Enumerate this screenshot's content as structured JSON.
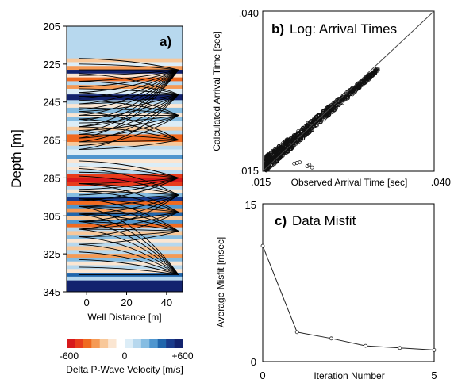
{
  "chart_data": [
    {
      "panel": "a)",
      "type": "heatmap",
      "xlabel": "Well Distance [m]",
      "ylabel": "Depth [m]",
      "x_ticks": [
        "0",
        "20",
        "40"
      ],
      "y_ticks": [
        "205",
        "225",
        "245",
        "265",
        "285",
        "305",
        "325",
        "345"
      ],
      "xlim": [
        -10,
        48
      ],
      "ylim": [
        345,
        205
      ],
      "colorbar": {
        "label": "Delta P-Wave Velocity [m/s]",
        "tick_labels": [
          "-600",
          "0",
          "+600"
        ],
        "range": [
          -600,
          600
        ],
        "colors": [
          "#d7191c",
          "#e83c1c",
          "#f06a20",
          "#f59a55",
          "#f8c89a",
          "#fbe6d2",
          "#ffffff",
          "#dcedf7",
          "#b7d8ee",
          "#86bde2",
          "#4f96cf",
          "#2166ac",
          "#1a3c8c",
          "#13236e"
        ]
      },
      "layers": [
        {
          "top": 205,
          "bottom": 222,
          "value": 100
        },
        {
          "top": 222,
          "bottom": 224,
          "value": -200
        },
        {
          "top": 224,
          "bottom": 226,
          "value": 50
        },
        {
          "top": 226,
          "bottom": 228,
          "value": -300
        },
        {
          "top": 228,
          "bottom": 230,
          "value": 600
        },
        {
          "top": 230,
          "bottom": 232,
          "value": -100
        },
        {
          "top": 232,
          "bottom": 234,
          "value": -420
        },
        {
          "top": 234,
          "bottom": 236,
          "value": 100
        },
        {
          "top": 236,
          "bottom": 238,
          "value": -300
        },
        {
          "top": 238,
          "bottom": 241,
          "value": 50
        },
        {
          "top": 241,
          "bottom": 244,
          "value": 580
        },
        {
          "top": 244,
          "bottom": 246,
          "value": 150
        },
        {
          "top": 246,
          "bottom": 248,
          "value": -150
        },
        {
          "top": 248,
          "bottom": 251,
          "value": 200
        },
        {
          "top": 251,
          "bottom": 253,
          "value": -100
        },
        {
          "top": 253,
          "bottom": 255,
          "value": 250
        },
        {
          "top": 255,
          "bottom": 258,
          "value": 0
        },
        {
          "top": 258,
          "bottom": 260,
          "value": -200
        },
        {
          "top": 260,
          "bottom": 262,
          "value": 100
        },
        {
          "top": 262,
          "bottom": 264,
          "value": -450
        },
        {
          "top": 264,
          "bottom": 266,
          "value": -380
        },
        {
          "top": 266,
          "bottom": 268,
          "value": -200
        },
        {
          "top": 268,
          "bottom": 270,
          "value": 100
        },
        {
          "top": 270,
          "bottom": 273,
          "value": 50
        },
        {
          "top": 273,
          "bottom": 275,
          "value": 300
        },
        {
          "top": 275,
          "bottom": 277,
          "value": -100
        },
        {
          "top": 277,
          "bottom": 279,
          "value": 50
        },
        {
          "top": 279,
          "bottom": 281,
          "value": -150
        },
        {
          "top": 281,
          "bottom": 283,
          "value": 150
        },
        {
          "top": 283,
          "bottom": 285,
          "value": -520
        },
        {
          "top": 285,
          "bottom": 287,
          "value": -600
        },
        {
          "top": 287,
          "bottom": 289,
          "value": -480
        },
        {
          "top": 289,
          "bottom": 291,
          "value": 150
        },
        {
          "top": 291,
          "bottom": 293,
          "value": -100
        },
        {
          "top": 293,
          "bottom": 295,
          "value": 200
        },
        {
          "top": 295,
          "bottom": 297,
          "value": 520
        },
        {
          "top": 297,
          "bottom": 299,
          "value": -430
        },
        {
          "top": 299,
          "bottom": 301,
          "value": 300
        },
        {
          "top": 301,
          "bottom": 303,
          "value": -300
        },
        {
          "top": 303,
          "bottom": 305,
          "value": 450
        },
        {
          "top": 305,
          "bottom": 307,
          "value": -200
        },
        {
          "top": 307,
          "bottom": 309,
          "value": 300
        },
        {
          "top": 309,
          "bottom": 311,
          "value": -450
        },
        {
          "top": 311,
          "bottom": 313,
          "value": 100
        },
        {
          "top": 313,
          "bottom": 315,
          "value": -250
        },
        {
          "top": 315,
          "bottom": 317,
          "value": 200
        },
        {
          "top": 317,
          "bottom": 319,
          "value": -100
        },
        {
          "top": 319,
          "bottom": 321,
          "value": 150
        },
        {
          "top": 321,
          "bottom": 323,
          "value": -200
        },
        {
          "top": 323,
          "bottom": 325,
          "value": 100
        },
        {
          "top": 325,
          "bottom": 327,
          "value": -300
        },
        {
          "top": 327,
          "bottom": 329,
          "value": 200
        },
        {
          "top": 329,
          "bottom": 331,
          "value": -150
        },
        {
          "top": 331,
          "bottom": 333,
          "value": 100
        },
        {
          "top": 333,
          "bottom": 335,
          "value": -100
        },
        {
          "top": 335,
          "bottom": 337,
          "value": 400
        },
        {
          "top": 337,
          "bottom": 339,
          "value": 100
        },
        {
          "top": 339,
          "bottom": 345,
          "value": 600
        }
      ],
      "ray_fans": [
        {
          "source_x": 46,
          "source_depth": 228,
          "receiver_x": -4,
          "depths": [
            222,
            225,
            228,
            231,
            234,
            237,
            240,
            243,
            246,
            249,
            252,
            255,
            258,
            261,
            264
          ]
        },
        {
          "source_x": 46,
          "source_depth": 241,
          "receiver_x": -4,
          "depths": [
            230,
            234,
            238,
            242,
            246,
            250,
            254,
            258,
            262,
            266,
            270
          ]
        },
        {
          "source_x": 46,
          "source_depth": 252,
          "receiver_x": -4,
          "depths": [
            240,
            244,
            248,
            252,
            256,
            260,
            264,
            268
          ]
        },
        {
          "source_x": 46,
          "source_depth": 265,
          "receiver_x": -4,
          "depths": [
            250,
            254,
            258,
            262,
            266,
            270
          ]
        },
        {
          "source_x": 46,
          "source_depth": 285,
          "receiver_x": -4,
          "depths": [
            276,
            279,
            282,
            285,
            288,
            291,
            294,
            297
          ]
        },
        {
          "source_x": 46,
          "source_depth": 294,
          "receiver_x": -4,
          "depths": [
            280,
            284,
            288,
            292,
            296,
            300,
            304,
            308,
            312
          ]
        },
        {
          "source_x": 46,
          "source_depth": 303,
          "receiver_x": -4,
          "depths": [
            288,
            292,
            296,
            300,
            304,
            308,
            312,
            316
          ]
        },
        {
          "source_x": 46,
          "source_depth": 313,
          "receiver_x": -4,
          "depths": [
            296,
            300,
            304,
            308,
            312,
            316,
            320
          ]
        },
        {
          "source_x": 46,
          "source_depth": 336,
          "receiver_x": -4,
          "depths": [
            300,
            304,
            308,
            312,
            316,
            320,
            324,
            328,
            332,
            336
          ]
        }
      ]
    },
    {
      "panel": "b)",
      "type": "scatter",
      "title": "Log: Arrival Times",
      "xlabel": "Observed Arrival Time [sec]",
      "ylabel": "Calculated Arrival Time [sec]",
      "xlim": [
        0.015,
        0.04
      ],
      "ylim": [
        0.015,
        0.04
      ],
      "x_tick_labels": [
        ".015",
        ".040"
      ],
      "y_tick_labels": [
        ".015",
        ".040"
      ],
      "reference_line": "y = x",
      "cloud": {
        "x_start": 0.0155,
        "x_end": 0.0318,
        "center_slope": 0.9,
        "count": 900
      },
      "outliers": [
        {
          "x": 0.0196,
          "y": 0.0162
        },
        {
          "x": 0.02,
          "y": 0.0163
        },
        {
          "x": 0.0204,
          "y": 0.0164
        },
        {
          "x": 0.0215,
          "y": 0.0158
        },
        {
          "x": 0.0218,
          "y": 0.016
        },
        {
          "x": 0.0222,
          "y": 0.0156
        }
      ]
    },
    {
      "panel": "c)",
      "type": "line",
      "title": "Data Misfit",
      "xlabel": "Iteration Number",
      "ylabel": "Average Misfit [msec]",
      "x": [
        0,
        1,
        2,
        3,
        4,
        5
      ],
      "values": [
        11.0,
        2.8,
        2.2,
        1.5,
        1.3,
        1.1
      ],
      "xlim": [
        0,
        5
      ],
      "ylim": [
        0,
        15
      ],
      "x_tick_labels": [
        "0",
        "5"
      ],
      "y_tick_labels": [
        "0",
        "15"
      ]
    }
  ]
}
